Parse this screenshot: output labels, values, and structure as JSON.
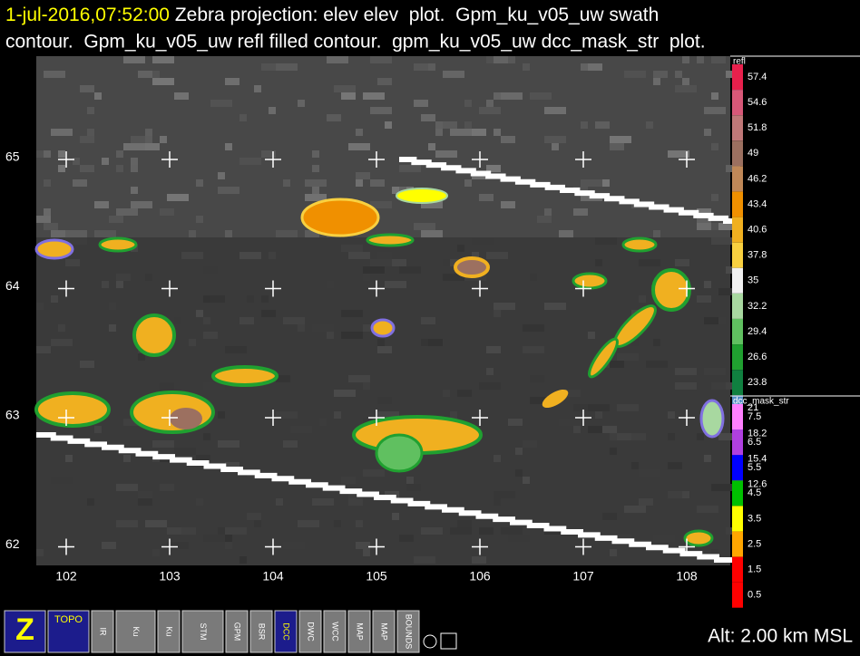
{
  "header": {
    "timestamp": "1-jul-2016,07:52:00",
    "line1": " Zebra projection: elev elev  plot.  Gpm_ku_v05_uw swath",
    "line2": "contour.  Gpm_ku_v05_uw refl filled contour.  gpm_ku_v05_uw dcc_mask_str  plot."
  },
  "map": {
    "xticks": [
      102,
      103,
      104,
      105,
      106,
      107,
      108
    ],
    "yticks": [
      65,
      64,
      63,
      62
    ]
  },
  "colorbars": [
    {
      "label": "refl",
      "values": [
        57.4,
        54.6,
        51.8,
        49.0,
        46.2,
        43.4,
        40.6,
        37.8,
        35.0,
        32.2,
        29.4,
        26.6,
        23.8,
        21.0,
        18.2,
        15.4,
        12.6
      ],
      "colors": [
        "#e8204c",
        "#d85878",
        "#c07878",
        "#9c7060",
        "#c08858",
        "#f09000",
        "#f0b020",
        "#f8d040",
        "#f0f0f0",
        "#a8d8a0",
        "#60c060",
        "#20a030",
        "#108040",
        "#5890c8",
        "#7868e0",
        "#5020a8",
        "#a000a0"
      ]
    },
    {
      "label": "dcc_mask_str",
      "values": [
        7.5,
        6.5,
        5.5,
        4.5,
        3.5,
        2.5,
        1.5,
        0.5
      ],
      "colors": [
        "#ff80ff",
        "#b040e0",
        "#0000ff",
        "#00c000",
        "#ffff00",
        "#ffa500",
        "#ff0000",
        "#ff0000"
      ]
    }
  ],
  "toolbar": {
    "buttons": [
      "Z",
      "TOPO",
      "IR",
      "Ku",
      "Ku",
      "STM",
      "GPM",
      "BSR",
      "DCC",
      "DWC",
      "WCC",
      "MAP",
      "MAP",
      "BOUNDS"
    ]
  },
  "altitude": "Alt: 2.00 km MSL"
}
